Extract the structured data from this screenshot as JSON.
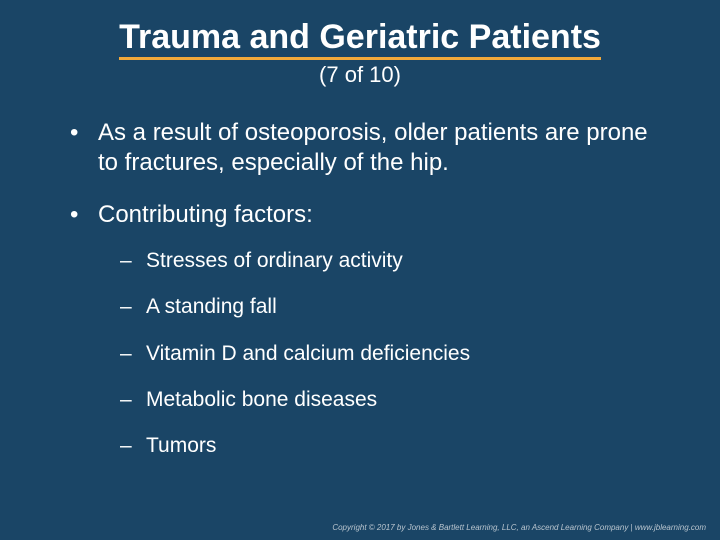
{
  "slide": {
    "title": "Trauma and Geriatric Patients",
    "subtitle": "(7 of 10)",
    "title_fontsize": 34,
    "subtitle_fontsize": 22,
    "underline_color": "#f2a93b",
    "background_color": "#1a4566",
    "text_color": "#ffffff",
    "bullets": [
      {
        "text": "As a result of osteoporosis, older patients are prone to fractures, especially of the hip.",
        "sub": []
      },
      {
        "text": "Contributing factors:",
        "sub": [
          "Stresses of ordinary activity",
          "A standing fall",
          "Vitamin D and calcium deficiencies",
          "Metabolic bone diseases",
          "Tumors"
        ]
      }
    ],
    "footer": "Copyright © 2017 by Jones & Bartlett Learning, LLC, an Ascend Learning Company | www.jblearning.com"
  }
}
